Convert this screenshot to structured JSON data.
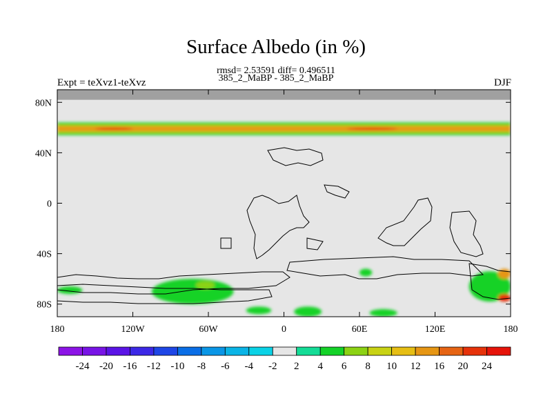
{
  "chart_data": {
    "type": "heatmap",
    "title": "Surface Albedo (in %)",
    "subtitle": "rmsd= 2.53591 diff= 0.496511",
    "case_label": "385_2_MaBP - 385_2_MaBP",
    "left_label": "Expt = teXvz1-teXvz",
    "right_label": "DJF",
    "x_ticks": [
      "180",
      "120W",
      "60W",
      "0",
      "60E",
      "120E",
      "180"
    ],
    "y_ticks": [
      "80N",
      "40N",
      "0",
      "40S",
      "80S"
    ],
    "xlim": [
      -180,
      180
    ],
    "ylim": [
      -90,
      90
    ],
    "missing_band_lat": [
      82,
      90
    ],
    "colorbar_labels": [
      "-24",
      "-20",
      "-16",
      "-12",
      "-10",
      "-8",
      "-6",
      "-4",
      "-2",
      "2",
      "4",
      "6",
      "8",
      "10",
      "12",
      "16",
      "20",
      "24"
    ],
    "colorbar_colors": [
      "#8c14e6",
      "#7814e6",
      "#5a14e6",
      "#3c28e6",
      "#1e46e6",
      "#0a6ee6",
      "#0a96e6",
      "#0ab4e6",
      "#0ad2e6",
      "#e6e6e6",
      "#14dc96",
      "#14d228",
      "#8cd214",
      "#c8d214",
      "#e6be14",
      "#e69614",
      "#e66414",
      "#e6320a",
      "#e6140a"
    ],
    "features": [
      {
        "lon": [
          -180,
          180
        ],
        "lat": [
          54,
          64
        ],
        "level": "4"
      },
      {
        "lon": [
          -180,
          180
        ],
        "lat": [
          56,
          62
        ],
        "level": "8"
      },
      {
        "lon": [
          -180,
          180
        ],
        "lat": [
          57,
          61
        ],
        "level": "12"
      },
      {
        "lon": [
          -150,
          -120
        ],
        "lat": [
          58,
          60
        ],
        "level": "20"
      },
      {
        "lon": [
          50,
          90
        ],
        "lat": [
          58,
          60
        ],
        "level": "20"
      },
      {
        "lon": [
          -180,
          -160
        ],
        "lat": [
          -72,
          -66
        ],
        "level": "4"
      },
      {
        "lon": [
          -105,
          -40
        ],
        "lat": [
          -80,
          -60
        ],
        "level": "4"
      },
      {
        "lon": [
          -70,
          -55
        ],
        "lat": [
          -68,
          -62
        ],
        "level": "6"
      },
      {
        "lon": [
          147,
          180
        ],
        "lat": [
          -78,
          -54
        ],
        "level": "4"
      },
      {
        "lon": [
          170,
          180
        ],
        "lat": [
          -60,
          -52
        ],
        "level": "12"
      },
      {
        "lon": [
          170,
          180
        ],
        "lat": [
          -78,
          -72
        ],
        "level": "20"
      },
      {
        "lon": [
          -30,
          -10
        ],
        "lat": [
          -88,
          -82
        ],
        "level": "4"
      },
      {
        "lon": [
          8,
          30
        ],
        "lat": [
          -90,
          -82
        ],
        "level": "4"
      },
      {
        "lon": [
          68,
          90
        ],
        "lat": [
          -90,
          -84
        ],
        "level": "4"
      },
      {
        "lon": [
          60,
          70
        ],
        "lat": [
          -58,
          -52
        ],
        "level": "4"
      }
    ]
  }
}
